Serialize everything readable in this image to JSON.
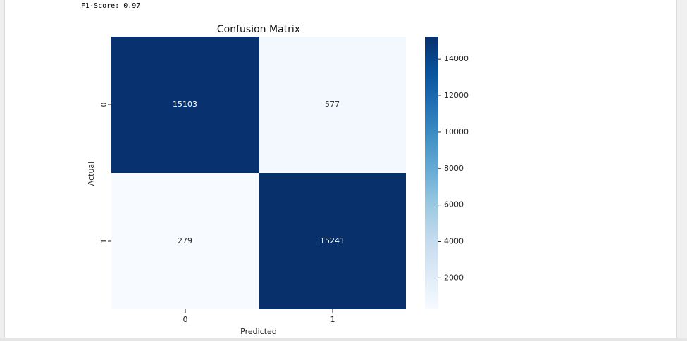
{
  "output": {
    "text": "F1-Score: 0.97"
  },
  "chart_data": {
    "type": "heatmap",
    "title": "Confusion Matrix",
    "xlabel": "Predicted",
    "ylabel": "Actual",
    "x_categories": [
      "0",
      "1"
    ],
    "y_categories": [
      "0",
      "1"
    ],
    "values": [
      [
        15103,
        577
      ],
      [
        279,
        15241
      ]
    ],
    "colormap": "Blues",
    "colorbar": {
      "min": 279,
      "max": 15241,
      "ticks": [
        2000,
        4000,
        6000,
        8000,
        10000,
        12000,
        14000
      ]
    },
    "colors": {
      "high": "#08306b",
      "low": "#f7fbff"
    }
  }
}
